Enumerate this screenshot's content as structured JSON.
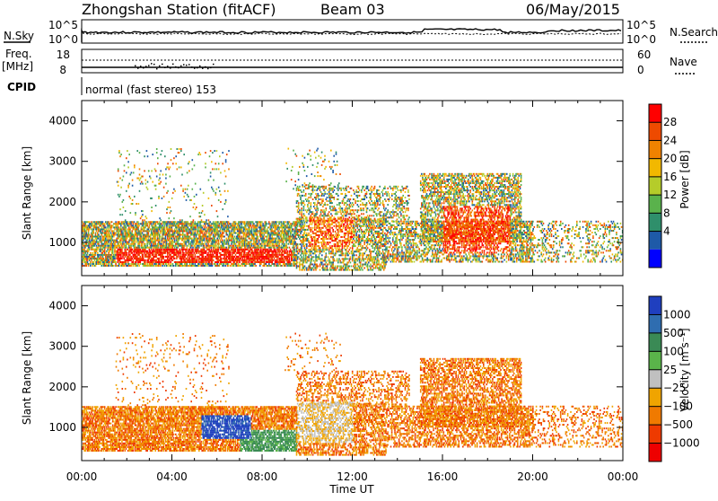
{
  "header": {
    "title": "Zhongshan Station (fitACF)",
    "beam": "Beam 03",
    "date": "06/May/2015"
  },
  "top_panels": {
    "nsky_label": "N.Sky",
    "nsearch_label": "N.Search",
    "nsky_ticks": [
      "10^5",
      "10^0"
    ],
    "nsearch_ticks": [
      "10^5",
      "10^0"
    ],
    "freq_label": "Freq.",
    "freq_unit": "[MHz]",
    "freq_ticks": [
      "18",
      "8"
    ],
    "nave_label": "Nave",
    "nave_ticks": [
      "60",
      "0"
    ],
    "cpid_label": "CPID",
    "cpid_text": "normal (fast stereo) 153"
  },
  "chart_data": [
    {
      "type": "heatmap",
      "name": "power",
      "ylabel": "Slant Range [km]",
      "xlabel": "Time UT",
      "x_ticks": [
        "00:00",
        "04:00",
        "08:00",
        "12:00",
        "16:00",
        "20:00",
        "00:00"
      ],
      "xlim_hours": [
        0,
        24
      ],
      "y_ticks": [
        1000,
        2000,
        3000,
        4000
      ],
      "ylim": [
        180,
        4500
      ],
      "colorbar": {
        "label": "Power [dB]",
        "ticks": [
          "4",
          "8",
          "12",
          "16",
          "20",
          "24",
          "28"
        ],
        "colors": [
          "#0000ff",
          "#1e5aa8",
          "#2f8f6b",
          "#5ab24c",
          "#b5cc2a",
          "#f2b800",
          "#f08200",
          "#ee4a00",
          "#ff0000"
        ]
      }
    },
    {
      "type": "heatmap",
      "name": "velocity",
      "ylabel": "Slant Range [km]",
      "xlabel": "Time UT",
      "x_ticks": [
        "00:00",
        "04:00",
        "08:00",
        "12:00",
        "16:00",
        "20:00",
        "00:00"
      ],
      "xlim_hours": [
        0,
        24
      ],
      "y_ticks": [
        1000,
        2000,
        3000,
        4000
      ],
      "ylim": [
        180,
        4500
      ],
      "colorbar": {
        "label": "Velocity [m s⁻¹]",
        "ticks": [
          "1000",
          "500",
          "100",
          "25",
          "−25",
          "−100",
          "−500",
          "−1000"
        ],
        "colors": [
          "#1f3fbf",
          "#2f6db0",
          "#3a8a55",
          "#5ab44a",
          "#c0c0c0",
          "#f0a400",
          "#f07a00",
          "#ee3a00",
          "#ee0000"
        ]
      }
    }
  ],
  "xaxis_label": "Time UT"
}
